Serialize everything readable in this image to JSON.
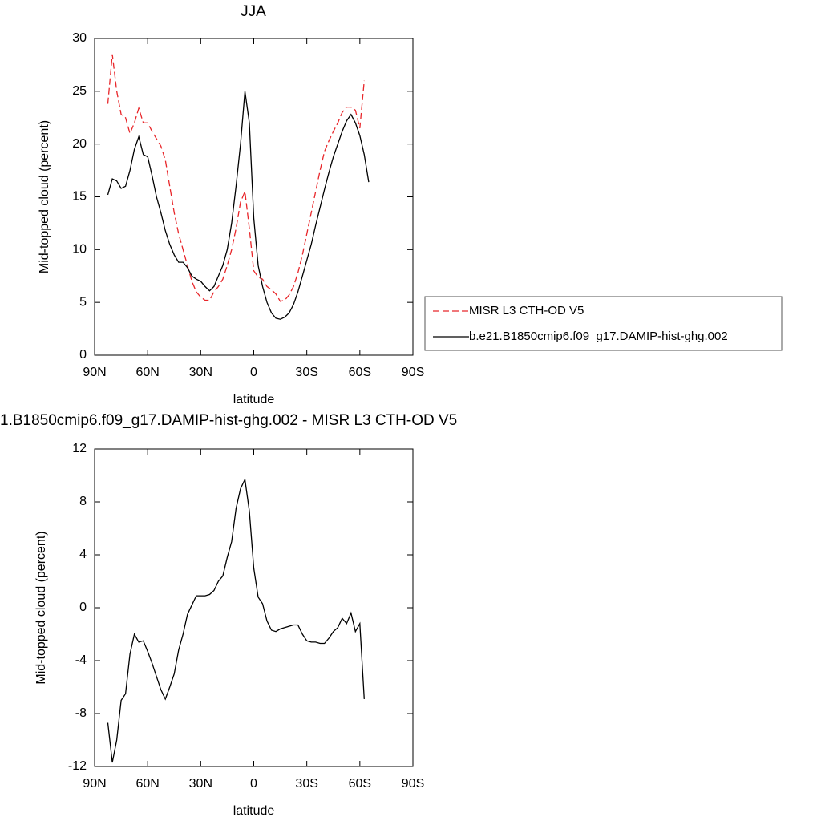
{
  "chart_data": [
    {
      "type": "line",
      "title": "JJA",
      "x_label": "latitude",
      "y_label": "Mid-topped cloud (percent)",
      "x": [
        82.5,
        80,
        77.5,
        75,
        72.5,
        70,
        67.5,
        65,
        62.5,
        60,
        57.5,
        55,
        52.5,
        50,
        47.5,
        45,
        42.5,
        40,
        37.5,
        35,
        32.5,
        30,
        27.5,
        25,
        22.5,
        20,
        17.5,
        15,
        12.5,
        10,
        7.5,
        5,
        2.5,
        0,
        -2.5,
        -5,
        -7.5,
        -10,
        -12.5,
        -15,
        -17.5,
        -20,
        -22.5,
        -25,
        -27.5,
        -30,
        -32.5,
        -35,
        -37.5,
        -40,
        -42.5,
        -45,
        -47.5,
        -50,
        -52.5,
        -55,
        -57.5,
        -60,
        -62.5,
        -65
      ],
      "series": [
        {
          "name": "MISR L3 CTH-OD V5",
          "color": "#e8262a",
          "line_style": "dashed",
          "values": [
            23.8,
            28.5,
            25,
            22.8,
            22.5,
            21,
            22,
            23.4,
            22,
            22,
            21.2,
            20.5,
            19.8,
            18.5,
            16,
            13.5,
            11.5,
            10,
            8.5,
            7,
            6,
            5.5,
            5.2,
            5.2,
            6,
            6.5,
            7.2,
            8.5,
            10,
            12,
            14.5,
            15.5,
            12,
            8,
            7.4,
            7.2,
            6.5,
            6.2,
            5.8,
            5.1,
            5.2,
            5.7,
            6.5,
            7.8,
            9.5,
            11.5,
            13.5,
            15.5,
            17.5,
            19.3,
            20.3,
            21.2,
            22,
            23,
            23.5,
            23.5,
            23.2,
            21.5,
            26,
            null
          ]
        },
        {
          "name": "b.e21.B1850cmip6.f09_g17.DAMIP-hist-ghg.002",
          "color": "#000000",
          "line_style": "solid",
          "values": [
            15.2,
            16.7,
            16.5,
            15.8,
            16,
            17.5,
            19.5,
            20.7,
            19,
            18.8,
            17,
            15,
            13.5,
            11.8,
            10.5,
            9.5,
            8.8,
            8.8,
            8.3,
            7.5,
            7.2,
            7,
            6.5,
            6.1,
            6.5,
            7.5,
            8.5,
            10,
            12.5,
            16,
            20,
            25,
            22,
            13,
            8.5,
            6.5,
            5,
            4,
            3.5,
            3.4,
            3.6,
            4,
            4.8,
            6,
            7.5,
            9,
            10.5,
            12.3,
            14,
            15.7,
            17.3,
            18.8,
            20,
            21.2,
            22.2,
            22.8,
            22,
            20.8,
            19,
            16.4
          ]
        }
      ],
      "xlim": [
        90,
        -90
      ],
      "xticks": [
        {
          "value": 90,
          "label": "90N"
        },
        {
          "value": 60,
          "label": "60N"
        },
        {
          "value": 30,
          "label": "30N"
        },
        0,
        {
          "value": -30,
          "label": "30S"
        },
        {
          "value": -60,
          "label": "60S"
        },
        {
          "value": -90,
          "label": "90S"
        }
      ],
      "ylim": [
        0,
        30
      ],
      "yticks": [
        0,
        5,
        10,
        15,
        20,
        25,
        30
      ],
      "grid": false,
      "legend": "right"
    },
    {
      "type": "line",
      "title": "1.B1850cmip6.f09_g17.DAMIP-hist-ghg.002 - MISR L3 CTH-OD V5",
      "x_label": "latitude",
      "y_label": "Mid-topped cloud (percent)",
      "x": [
        82.5,
        80,
        77.5,
        75,
        72.5,
        70,
        67.5,
        65,
        62.5,
        60,
        57.5,
        55,
        52.5,
        50,
        47.5,
        45,
        42.5,
        40,
        37.5,
        35,
        32.5,
        30,
        27.5,
        25,
        22.5,
        20,
        17.5,
        15,
        12.5,
        10,
        7.5,
        5,
        2.5,
        0,
        -2.5,
        -5,
        -7.5,
        -10,
        -12.5,
        -15,
        -17.5,
        -20,
        -22.5,
        -25,
        -27.5,
        -30,
        -32.5,
        -35,
        -37.5,
        -40,
        -42.5,
        -45,
        -47.5,
        -50,
        -52.5,
        -55,
        -57.5,
        -60,
        -62.5,
        -65
      ],
      "values": [
        -8.7,
        -11.7,
        -10,
        -7,
        -6.5,
        -3.5,
        -2,
        -2.6,
        -2.5,
        -3.3,
        -4.2,
        -5.2,
        -6.2,
        -6.9,
        -6,
        -5,
        -3.2,
        -2,
        -0.5,
        0.2,
        0.9,
        0.9,
        0.9,
        1,
        1.3,
        2,
        2.4,
        3.8,
        5,
        7.5,
        9,
        9.7,
        7.3,
        3,
        0.8,
        0.3,
        -1,
        -1.7,
        -1.8,
        -1.6,
        -1.5,
        -1.4,
        -1.3,
        -1.3,
        -2,
        -2.5,
        -2.6,
        -2.6,
        -2.7,
        -2.7,
        -2.3,
        -1.8,
        -1.5,
        -0.8,
        -1.2,
        -0.4,
        -1.8,
        -1.2,
        -6.9,
        null
      ],
      "color": "#000000",
      "xlim": [
        90,
        -90
      ],
      "xticks": [
        {
          "value": 90,
          "label": "90N"
        },
        {
          "value": 60,
          "label": "60N"
        },
        {
          "value": 30,
          "label": "30N"
        },
        0,
        {
          "value": -30,
          "label": "30S"
        },
        {
          "value": -60,
          "label": "60S"
        },
        {
          "value": -90,
          "label": "90S"
        }
      ],
      "ylim": [
        -12,
        12
      ],
      "yticks": [
        -12,
        -8,
        -4,
        0,
        4,
        8,
        12
      ],
      "grid": false
    }
  ]
}
